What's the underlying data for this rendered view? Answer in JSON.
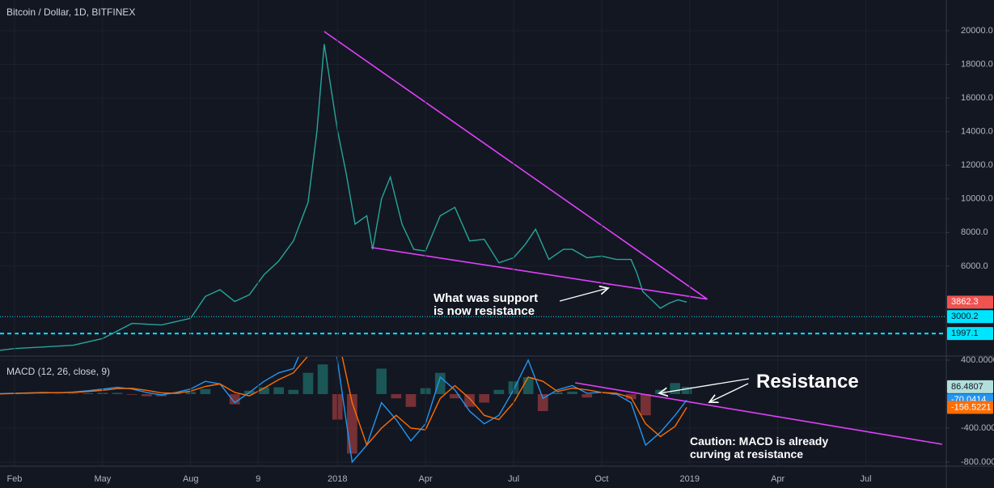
{
  "chart_data": [
    {
      "type": "line",
      "title": "Bitcoin / Dollar, 1D, BITFINEX",
      "x": [
        0.5,
        1,
        2,
        3,
        4,
        5,
        6,
        7,
        7.5,
        8,
        8.5,
        9,
        9.5,
        10,
        10.5,
        11,
        11.3,
        11.55,
        12,
        12.3,
        12.6,
        13,
        13.2,
        13.5,
        13.8,
        14.2,
        14.6,
        15,
        15.5,
        16,
        16.5,
        17,
        17.5,
        18,
        18.4,
        18.75,
        19.2,
        19.7,
        20,
        20.5,
        21,
        21.5,
        22,
        22.2,
        22.4,
        22.7,
        23,
        23.3,
        23.6,
        23.9
      ],
      "series": [
        {
          "color": "#26a69a",
          "tag_color": "#ef5350",
          "tag_text_color": "#ffffff",
          "values": [
            1000,
            1100,
            1200,
            1300,
            1700,
            2600,
            2500,
            2900,
            4200,
            4600,
            3900,
            4300,
            5500,
            6300,
            7500,
            9800,
            14000,
            19200,
            14100,
            11500,
            8500,
            9000,
            7000,
            10000,
            11300,
            8500,
            7000,
            6900,
            9000,
            9500,
            7500,
            7600,
            6200,
            6500,
            7300,
            8200,
            6400,
            7000,
            7000,
            6500,
            6600,
            6400,
            6400,
            5600,
            4500,
            4000,
            3500,
            3800,
            4000,
            3862.3
          ]
        }
      ],
      "xlim": [
        0.505,
        32.74
      ],
      "ylim": [
        654,
        21827
      ],
      "yticks": [
        {
          "value": 20000,
          "label": "20000.0"
        },
        {
          "value": 18000,
          "label": "18000.0"
        },
        {
          "value": 16000,
          "label": "16000.0"
        },
        {
          "value": 14000,
          "label": "14000.0"
        },
        {
          "value": 12000,
          "label": "12000.0"
        },
        {
          "value": 10000,
          "label": "10000.0"
        },
        {
          "value": 8000,
          "label": "8000.0"
        },
        {
          "value": 6000,
          "label": "6000.0"
        }
      ],
      "levels": [
        {
          "value": 3000.2,
          "color": "#00e5ff",
          "style": "dotted"
        },
        {
          "value": 1997.1,
          "color": "#00e5ff",
          "style": "dashed"
        }
      ],
      "trendlines": [
        {
          "x": [
            11.55,
            24.6
          ],
          "y": [
            19950,
            4038
          ],
          "color": "#e040fb"
        },
        {
          "x": [
            13.15,
            24.6
          ],
          "y": [
            7115,
            4038
          ],
          "color": "#e040fb"
        }
      ],
      "annotations": [
        {
          "lines": [
            "What was support",
            "is now resistance"
          ]
        }
      ],
      "grid": true
    },
    {
      "type": "line",
      "title": "MACD (12, 26, close, 9)",
      "x": [
        0.5,
        1,
        1.5,
        2,
        2.5,
        3,
        3.5,
        4,
        4.5,
        5,
        5.5,
        6,
        6.5,
        7,
        7.5,
        8,
        8.5,
        9,
        9.5,
        10,
        10.5,
        11,
        11.5,
        12,
        12.5,
        13,
        13.5,
        14,
        14.5,
        15,
        15.5,
        16,
        16.5,
        17,
        17.5,
        18,
        18.5,
        19,
        19.5,
        20,
        20.5,
        21,
        21.5,
        22,
        22.5,
        23,
        23.5,
        23.9
      ],
      "series": [
        {
          "type": "histogram",
          "color": "#26a69a",
          "negative_color": "#ef5350",
          "tag_color": "#b2dfdb",
          "tag_text_color": "#131722",
          "values": [
            2,
            3,
            3,
            4,
            -2,
            5,
            10,
            15,
            15,
            -8,
            -25,
            -25,
            10,
            25,
            60,
            0,
            -120,
            40,
            80,
            80,
            50,
            250,
            350,
            -300,
            -700,
            0,
            300,
            -50,
            -150,
            70,
            250,
            -50,
            -150,
            -100,
            50,
            150,
            200,
            -200,
            20,
            30,
            -40,
            0,
            -10,
            -60,
            -250,
            50,
            130,
            86.4807
          ]
        },
        {
          "type": "line",
          "color": "#2196f3",
          "tag_color": "#2196f3",
          "tag_text_color": "#ffffff",
          "values": [
            5,
            10,
            15,
            20,
            15,
            25,
            40,
            60,
            80,
            60,
            20,
            -10,
            20,
            60,
            150,
            120,
            -100,
            20,
            150,
            250,
            300,
            700,
            1200,
            400,
            -800,
            -600,
            -100,
            -300,
            -550,
            -350,
            200,
            50,
            -200,
            -350,
            -250,
            50,
            400,
            -50,
            50,
            100,
            10,
            20,
            0,
            -100,
            -600,
            -450,
            -250,
            -70.0414
          ]
        },
        {
          "type": "line",
          "color": "#ff6d00",
          "tag_color": "#ff6d00",
          "tag_text_color": "#ffffff",
          "values": [
            3,
            7,
            12,
            16,
            17,
            20,
            30,
            45,
            65,
            68,
            45,
            15,
            10,
            35,
            90,
            120,
            20,
            -20,
            70,
            170,
            250,
            450,
            850,
            700,
            -100,
            -600,
            -400,
            -250,
            -400,
            -420,
            -50,
            100,
            -50,
            -250,
            -300,
            -100,
            200,
            150,
            30,
            70,
            50,
            20,
            10,
            -40,
            -350,
            -500,
            -380,
            -156.5221
          ]
        }
      ],
      "xlim": [
        0.505,
        32.74
      ],
      "ylim": [
        -848,
        438
      ],
      "yticks": [
        {
          "value": 400,
          "label": "400.0000"
        },
        {
          "value": -400,
          "label": "-400.0000"
        },
        {
          "value": -800,
          "label": "-800.0000"
        }
      ],
      "xticks": [
        {
          "value": 1,
          "label": "Feb"
        },
        {
          "value": 4,
          "label": "May"
        },
        {
          "value": 7,
          "label": "Aug"
        },
        {
          "value": 9.3,
          "label": "9"
        },
        {
          "value": 12,
          "label": "2018"
        },
        {
          "value": 15,
          "label": "Apr"
        },
        {
          "value": 18,
          "label": "Jul"
        },
        {
          "value": 21,
          "label": "Oct"
        },
        {
          "value": 24,
          "label": "2019"
        },
        {
          "value": 27,
          "label": "Apr"
        },
        {
          "value": 30,
          "label": "Jul"
        }
      ],
      "trendlines": [
        {
          "x": [
            20.1,
            32.6
          ],
          "y": [
            133,
            -590
          ],
          "color": "#e040fb"
        }
      ],
      "annotations": [
        {
          "lines": [
            "Resistance"
          ]
        },
        {
          "lines": [
            "Caution: MACD is already",
            "curving at resistance"
          ]
        }
      ],
      "grid": true
    }
  ]
}
